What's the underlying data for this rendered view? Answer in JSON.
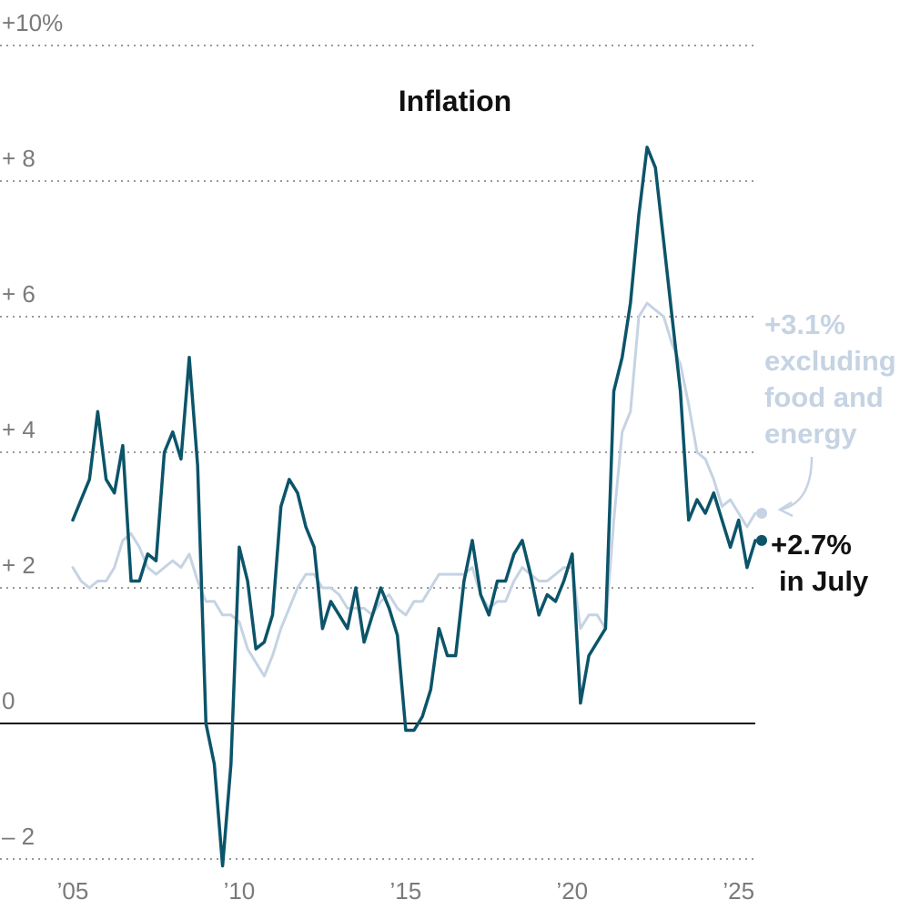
{
  "chart_data": {
    "type": "line",
    "title": "Inflation",
    "xlabel": "",
    "ylabel": "",
    "xlim": [
      2005.0,
      2025.6
    ],
    "ylim": [
      -2,
      10
    ],
    "y_ticks": [
      {
        "value": 10,
        "label": "+10%"
      },
      {
        "value": 8,
        "label": "+ 8"
      },
      {
        "value": 6,
        "label": "+ 6"
      },
      {
        "value": 4,
        "label": "+ 4"
      },
      {
        "value": 2,
        "label": "+ 2"
      },
      {
        "value": 0,
        "label": "0"
      },
      {
        "value": -2,
        "label": "– 2"
      }
    ],
    "x_ticks": [
      {
        "value": 2005,
        "label": "’05"
      },
      {
        "value": 2010,
        "label": "’10"
      },
      {
        "value": 2015,
        "label": "’15"
      },
      {
        "value": 2020,
        "label": "’20"
      },
      {
        "value": 2025,
        "label": "’25"
      }
    ],
    "grid": "horizontal dotted",
    "colors": {
      "headline": "#0b5469",
      "core": "#c5d3e3",
      "zero_line": "#111111",
      "grid": "#9a9a9a"
    },
    "series": [
      {
        "id": "core",
        "x": [
          2005.0,
          2005.25,
          2005.5,
          2005.75,
          2006.0,
          2006.25,
          2006.5,
          2006.75,
          2007.0,
          2007.25,
          2007.5,
          2007.75,
          2008.0,
          2008.25,
          2008.5,
          2008.75,
          2009.0,
          2009.25,
          2009.5,
          2009.75,
          2010.0,
          2010.25,
          2010.5,
          2010.75,
          2011.0,
          2011.25,
          2011.5,
          2011.75,
          2012.0,
          2012.25,
          2012.5,
          2012.75,
          2013.0,
          2013.25,
          2013.5,
          2013.75,
          2014.0,
          2014.25,
          2014.5,
          2014.75,
          2015.0,
          2015.25,
          2015.5,
          2015.75,
          2016.0,
          2016.25,
          2016.5,
          2016.75,
          2017.0,
          2017.25,
          2017.5,
          2017.75,
          2018.0,
          2018.25,
          2018.5,
          2018.75,
          2019.0,
          2019.25,
          2019.5,
          2019.75,
          2020.0,
          2020.25,
          2020.5,
          2020.75,
          2021.0,
          2021.25,
          2021.5,
          2021.75,
          2022.0,
          2022.25,
          2022.5,
          2022.75,
          2023.0,
          2023.25,
          2023.5,
          2023.75,
          2024.0,
          2024.25,
          2024.5,
          2024.75,
          2025.0,
          2025.25,
          2025.5
        ],
        "values": [
          2.3,
          2.1,
          2.0,
          2.1,
          2.1,
          2.3,
          2.7,
          2.8,
          2.6,
          2.3,
          2.2,
          2.3,
          2.4,
          2.3,
          2.5,
          2.1,
          1.8,
          1.8,
          1.6,
          1.6,
          1.5,
          1.1,
          0.9,
          0.7,
          1.0,
          1.4,
          1.7,
          2.0,
          2.2,
          2.2,
          2.0,
          2.0,
          1.9,
          1.7,
          1.7,
          1.7,
          1.6,
          1.8,
          1.9,
          1.7,
          1.6,
          1.8,
          1.8,
          2.0,
          2.2,
          2.2,
          2.2,
          2.2,
          2.3,
          1.9,
          1.7,
          1.8,
          1.8,
          2.1,
          2.3,
          2.2,
          2.1,
          2.1,
          2.2,
          2.3,
          2.3,
          1.4,
          1.6,
          1.6,
          1.4,
          3.0,
          4.3,
          4.6,
          6.0,
          6.2,
          6.1,
          6.0,
          5.6,
          5.3,
          4.7,
          4.0,
          3.9,
          3.6,
          3.2,
          3.3,
          3.1,
          2.9,
          3.1
        ]
      },
      {
        "id": "headline",
        "x": [
          2005.0,
          2005.25,
          2005.5,
          2005.75,
          2006.0,
          2006.25,
          2006.5,
          2006.75,
          2007.0,
          2007.25,
          2007.5,
          2007.75,
          2008.0,
          2008.25,
          2008.5,
          2008.75,
          2009.0,
          2009.25,
          2009.5,
          2009.75,
          2010.0,
          2010.25,
          2010.5,
          2010.75,
          2011.0,
          2011.25,
          2011.5,
          2011.75,
          2012.0,
          2012.25,
          2012.5,
          2012.75,
          2013.0,
          2013.25,
          2013.5,
          2013.75,
          2014.0,
          2014.25,
          2014.5,
          2014.75,
          2015.0,
          2015.25,
          2015.5,
          2015.75,
          2016.0,
          2016.25,
          2016.5,
          2016.75,
          2017.0,
          2017.25,
          2017.5,
          2017.75,
          2018.0,
          2018.25,
          2018.5,
          2018.75,
          2019.0,
          2019.25,
          2019.5,
          2019.75,
          2020.0,
          2020.25,
          2020.5,
          2020.75,
          2021.0,
          2021.25,
          2021.5,
          2021.75,
          2022.0,
          2022.25,
          2022.5,
          2022.75,
          2023.0,
          2023.25,
          2023.5,
          2023.75,
          2024.0,
          2024.25,
          2024.5,
          2024.75,
          2025.0,
          2025.25,
          2025.5
        ],
        "values": [
          3.0,
          3.3,
          3.6,
          4.6,
          3.6,
          3.4,
          4.1,
          2.1,
          2.1,
          2.5,
          2.4,
          4.0,
          4.3,
          3.9,
          5.4,
          3.8,
          0.0,
          -0.6,
          -2.1,
          -0.6,
          2.6,
          2.1,
          1.1,
          1.2,
          1.6,
          3.2,
          3.6,
          3.4,
          2.9,
          2.6,
          1.4,
          1.8,
          1.6,
          1.4,
          2.0,
          1.2,
          1.6,
          2.0,
          1.7,
          1.3,
          -0.1,
          -0.1,
          0.1,
          0.5,
          1.4,
          1.0,
          1.0,
          2.1,
          2.7,
          1.9,
          1.6,
          2.1,
          2.1,
          2.5,
          2.7,
          2.2,
          1.6,
          1.9,
          1.8,
          2.1,
          2.5,
          0.3,
          1.0,
          1.2,
          1.4,
          4.9,
          5.4,
          6.2,
          7.5,
          8.5,
          8.2,
          7.1,
          6.0,
          4.9,
          3.0,
          3.3,
          3.1,
          3.4,
          3.0,
          2.6,
          3.0,
          2.3,
          2.7
        ]
      }
    ],
    "annotations": {
      "core": [
        "+3.1%",
        "excluding",
        "food and",
        "energy"
      ],
      "headline": [
        "+2.7%",
        "in July"
      ]
    }
  }
}
